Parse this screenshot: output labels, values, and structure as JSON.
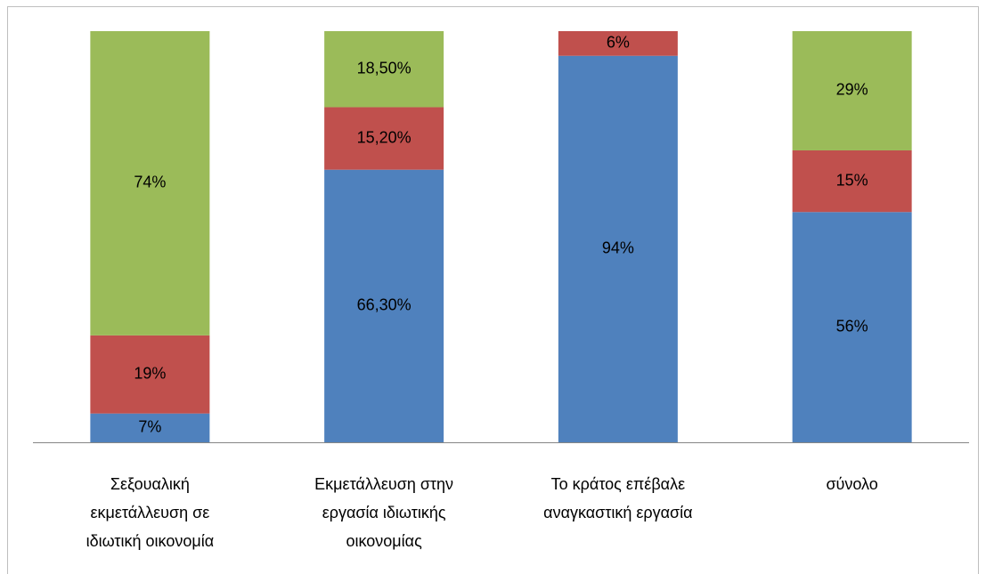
{
  "chart_data": {
    "type": "stacked_bar",
    "categories": [
      "Σεξουαλική εκμετάλλευση σε ιδιωτική οικονομία",
      "Εκμετάλλευση στην εργασία ιδιωτικής οικονομίας",
      "Το κράτος επέβαλε αναγκαστική εργασία",
      "σύνολο"
    ],
    "ylim": [
      0,
      100
    ],
    "series": [
      {
        "color": "#4f81bd",
        "values": [
          7,
          66.3,
          94,
          56
        ],
        "value_labels": [
          "7%",
          "66,30%",
          "94%",
          "56%"
        ]
      },
      {
        "color": "#c0504d",
        "values": [
          19,
          15.2,
          6,
          15
        ],
        "value_labels": [
          "19%",
          "15,20%",
          "6%",
          "15%"
        ]
      },
      {
        "color": "#9bbb59",
        "values": [
          74,
          18.5,
          null,
          29
        ],
        "value_labels": [
          "74%",
          "18,50%",
          null,
          "29%"
        ]
      }
    ]
  }
}
